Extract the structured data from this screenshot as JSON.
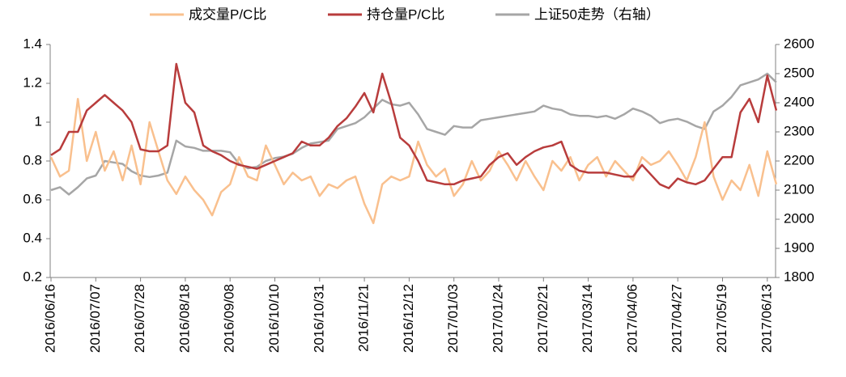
{
  "chart_data": {
    "type": "line",
    "categories": [
      "2016/06/16",
      null,
      null,
      null,
      null,
      "2016/07/07",
      null,
      null,
      null,
      null,
      "2016/07/28",
      null,
      null,
      null,
      null,
      "2016/08/18",
      null,
      null,
      null,
      null,
      "2016/09/08",
      null,
      null,
      null,
      null,
      "2016/10/10",
      null,
      null,
      null,
      null,
      "2016/10/31",
      null,
      null,
      null,
      null,
      "2016/11/21",
      null,
      null,
      null,
      null,
      "2016/12/12",
      null,
      null,
      null,
      null,
      "2017/01/03",
      null,
      null,
      null,
      null,
      "2017/01/24",
      null,
      null,
      null,
      null,
      "2017/02/21",
      null,
      null,
      null,
      null,
      "2017/03/14",
      null,
      null,
      null,
      null,
      "2017/04/06",
      null,
      null,
      null,
      null,
      "2017/04/27",
      null,
      null,
      null,
      null,
      "2017/05/19",
      null,
      null,
      null,
      null,
      "2017/06/13",
      null
    ],
    "series": [
      {
        "name": "成交量P/C比",
        "color": "#f9c08e",
        "values": [
          0.82,
          0.72,
          0.75,
          1.12,
          0.8,
          0.95,
          0.75,
          0.85,
          0.7,
          0.88,
          0.68,
          1.0,
          0.85,
          0.7,
          0.63,
          0.72,
          0.65,
          0.6,
          0.52,
          0.64,
          0.68,
          0.82,
          0.72,
          0.7,
          0.88,
          0.78,
          0.68,
          0.74,
          0.7,
          0.72,
          0.62,
          0.68,
          0.66,
          0.7,
          0.72,
          0.58,
          0.48,
          0.68,
          0.72,
          0.7,
          0.72,
          0.9,
          0.78,
          0.72,
          0.76,
          0.62,
          0.68,
          0.8,
          0.7,
          0.75,
          0.85,
          0.78,
          0.7,
          0.8,
          0.72,
          0.65,
          0.8,
          0.75,
          0.82,
          0.7,
          0.78,
          0.82,
          0.72,
          0.8,
          0.75,
          0.7,
          0.82,
          0.78,
          0.8,
          0.85,
          0.78,
          0.7,
          0.82,
          1.0,
          0.72,
          0.6,
          0.7,
          0.65,
          0.78,
          0.62,
          0.85,
          0.68
        ]
      },
      {
        "name": "持仓量P/C比",
        "color": "#b83c3c",
        "values": [
          0.83,
          0.86,
          0.95,
          0.95,
          1.06,
          1.1,
          1.14,
          1.1,
          1.06,
          1.0,
          0.86,
          0.85,
          0.85,
          0.88,
          1.3,
          1.1,
          1.05,
          0.88,
          0.85,
          0.83,
          0.8,
          0.78,
          0.77,
          0.76,
          0.78,
          0.8,
          0.82,
          0.84,
          0.9,
          0.88,
          0.88,
          0.92,
          0.98,
          1.02,
          1.08,
          1.15,
          1.05,
          1.25,
          1.1,
          0.92,
          0.88,
          0.8,
          0.7,
          0.69,
          0.68,
          0.68,
          0.7,
          0.71,
          0.72,
          0.78,
          0.82,
          0.84,
          0.78,
          0.82,
          0.85,
          0.87,
          0.88,
          0.9,
          0.78,
          0.75,
          0.74,
          0.74,
          0.74,
          0.73,
          0.72,
          0.72,
          0.78,
          0.73,
          0.68,
          0.66,
          0.71,
          0.69,
          0.68,
          0.7,
          0.76,
          0.82,
          0.82,
          1.05,
          1.12,
          1.0,
          1.24,
          1.06
        ]
      },
      {
        "name": "上证50走势（右轴）",
        "color": "#a6a6a6",
        "axis": "y2",
        "values": [
          2100,
          2110,
          2085,
          2110,
          2140,
          2150,
          2200,
          2195,
          2190,
          2165,
          2150,
          2145,
          2150,
          2160,
          2270,
          2250,
          2245,
          2235,
          2235,
          2235,
          2230,
          2190,
          2175,
          2180,
          2200,
          2210,
          2215,
          2225,
          2245,
          2260,
          2265,
          2270,
          2310,
          2320,
          2330,
          2350,
          2380,
          2410,
          2395,
          2390,
          2400,
          2360,
          2310,
          2300,
          2290,
          2320,
          2315,
          2315,
          2340,
          2345,
          2350,
          2355,
          2360,
          2365,
          2370,
          2390,
          2380,
          2375,
          2360,
          2355,
          2355,
          2350,
          2355,
          2345,
          2360,
          2380,
          2370,
          2355,
          2330,
          2340,
          2345,
          2335,
          2320,
          2310,
          2370,
          2390,
          2420,
          2460,
          2470,
          2480,
          2500,
          2470
        ]
      }
    ],
    "ylim": [
      0.2,
      1.4
    ],
    "yticks": [
      0.2,
      0.4,
      0.6,
      0.8,
      1,
      1.2,
      1.4
    ],
    "y2lim": [
      1800,
      2600
    ],
    "y2ticks": [
      1800,
      1900,
      2000,
      2100,
      2200,
      2300,
      2400,
      2500,
      2600
    ],
    "legend": "top"
  }
}
